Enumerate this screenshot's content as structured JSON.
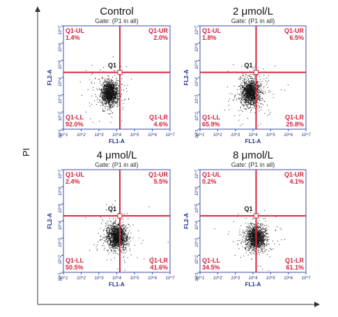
{
  "figure": {
    "y_axis_label": "PI"
  },
  "chart_data": [
    {
      "type": "scatter",
      "title": "Control",
      "subtitle": "Gate: (P1 in all)",
      "xlabel": "FL1-A",
      "ylabel": "FL2-A",
      "x_scale": "log",
      "y_scale": "log",
      "xlim": [
        10,
        10000000
      ],
      "ylim": [
        10,
        10000000
      ],
      "x_ticks": [
        "10^1",
        "10^2",
        "10^3",
        "10^4",
        "10^5",
        "10^6",
        "10^7"
      ],
      "y_ticks": [
        "10^1",
        "10^2",
        "10^3",
        "10^4",
        "10^5",
        "10^6",
        "10^7"
      ],
      "gate_x": 15000,
      "gate_y": 20000,
      "gate_label": "Q1",
      "quadrants": [
        {
          "name": "Q1-UL",
          "value": "1.4%"
        },
        {
          "name": "Q1-UR",
          "value": "2.0%"
        },
        {
          "name": "Q1-LL",
          "value": "92.0%"
        },
        {
          "name": "Q1-LR",
          "value": "4.6%"
        }
      ],
      "population_center_log": [
        3.6,
        3.1
      ],
      "population_spread_log": [
        0.22,
        0.34
      ],
      "grid": false
    },
    {
      "type": "scatter",
      "title": "2 μmol/L",
      "subtitle": "Gate: (P1 in all)",
      "xlabel": "FL1-A",
      "ylabel": "FL2-A",
      "x_scale": "log",
      "y_scale": "log",
      "xlim": [
        10,
        10000000
      ],
      "ylim": [
        10,
        10000000
      ],
      "x_ticks": [
        "10^1",
        "10^2",
        "10^3",
        "10^4",
        "10^5",
        "10^6",
        "10^7"
      ],
      "y_ticks": [
        "10^1",
        "10^2",
        "10^3",
        "10^4",
        "10^5",
        "10^6",
        "10^7"
      ],
      "gate_x": 15000,
      "gate_y": 20000,
      "gate_label": "Q1",
      "quadrants": [
        {
          "name": "Q1-UL",
          "value": "1.8%"
        },
        {
          "name": "Q1-UR",
          "value": "6.5%"
        },
        {
          "name": "Q1-LL",
          "value": "65.9%"
        },
        {
          "name": "Q1-LR",
          "value": "25.8%"
        }
      ],
      "population_center_log": [
        3.85,
        3.15
      ],
      "population_spread_log": [
        0.26,
        0.36
      ],
      "grid": false
    },
    {
      "type": "scatter",
      "title": "4 μmol/L",
      "subtitle": "Gate: (P1 in all)",
      "xlabel": "FL1-A",
      "ylabel": "FL2-A",
      "x_scale": "log",
      "y_scale": "log",
      "xlim": [
        10,
        10000000
      ],
      "ylim": [
        10,
        10000000
      ],
      "x_ticks": [
        "10^1",
        "10^2",
        "10^3",
        "10^4",
        "10^5",
        "10^6",
        "10^7"
      ],
      "y_ticks": [
        "10^1",
        "10^2",
        "10^3",
        "10^4",
        "10^5",
        "10^6",
        "10^7"
      ],
      "gate_x": 15000,
      "gate_y": 20000,
      "gate_label": "Q1",
      "quadrants": [
        {
          "name": "Q1-UL",
          "value": "2.4%"
        },
        {
          "name": "Q1-UR",
          "value": "5.5%"
        },
        {
          "name": "Q1-LL",
          "value": "50.5%"
        },
        {
          "name": "Q1-LR",
          "value": "41.6%"
        }
      ],
      "population_center_log": [
        4.0,
        3.1
      ],
      "population_spread_log": [
        0.27,
        0.36
      ],
      "grid": false
    },
    {
      "type": "scatter",
      "title": "8 μmol/L",
      "subtitle": "Gate: (P1 in all)",
      "xlabel": "FL1-A",
      "ylabel": "FL2-A",
      "x_scale": "log",
      "y_scale": "log",
      "xlim": [
        10,
        10000000
      ],
      "ylim": [
        10,
        10000000
      ],
      "x_ticks": [
        "10^1",
        "10^2",
        "10^3",
        "10^4",
        "10^5",
        "10^6",
        "10^7"
      ],
      "y_ticks": [
        "10^1",
        "10^2",
        "10^3",
        "10^4",
        "10^5",
        "10^6",
        "10^7"
      ],
      "gate_x": 15000,
      "gate_y": 20000,
      "gate_label": "Q1",
      "quadrants": [
        {
          "name": "Q1-UL",
          "value": "0.2%"
        },
        {
          "name": "Q1-UR",
          "value": "4.1%"
        },
        {
          "name": "Q1-LL",
          "value": "34.5%"
        },
        {
          "name": "Q1-LR",
          "value": "61.1%"
        }
      ],
      "population_center_log": [
        4.15,
        3.05
      ],
      "population_spread_log": [
        0.25,
        0.34
      ],
      "grid": false
    }
  ],
  "colors": {
    "gate_line": "#d8283f",
    "quadrant_text": "#d4213a",
    "axis_text": "#1d2f8a",
    "plot_frame": "#3a49a8",
    "dots": "#111111"
  }
}
